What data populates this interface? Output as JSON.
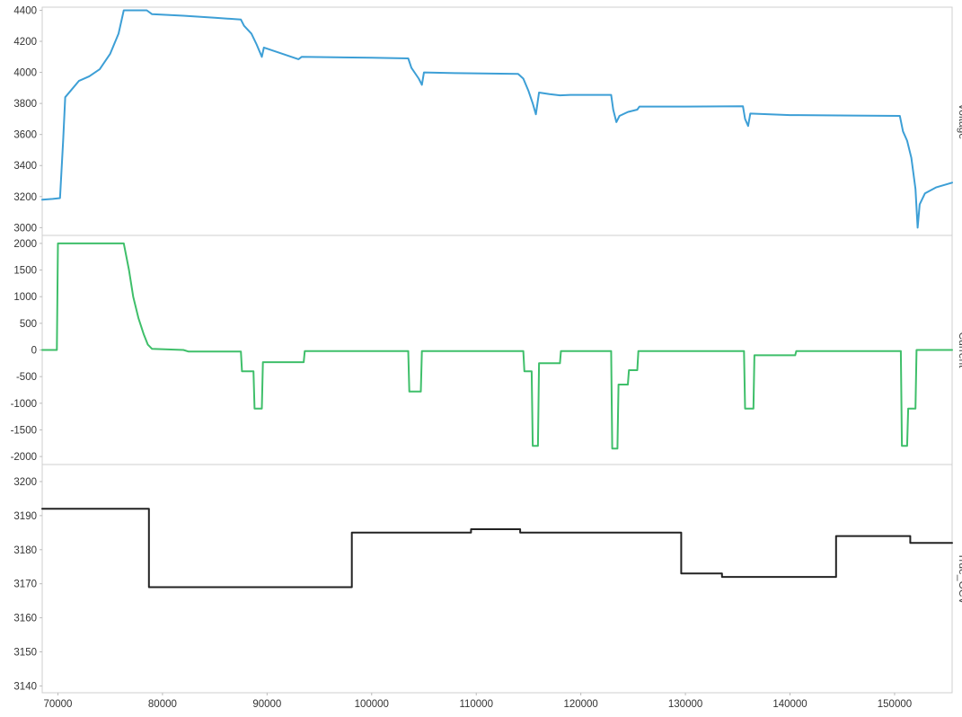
{
  "colors": {
    "voltage": "#3d9fd6",
    "current": "#3fbf6a",
    "true_ocv": "#222222",
    "grid": "#dddddd",
    "frame": "#cfcfcf"
  },
  "chart_data": [
    {
      "type": "line",
      "name": "Voltage",
      "ylabel": "Voltage",
      "xlim": [
        68500,
        155500
      ],
      "ylim": [
        2950,
        4420
      ],
      "yticks": [
        3000,
        3200,
        3400,
        3600,
        3800,
        4000,
        4200,
        4400
      ],
      "grid": false,
      "series": [
        {
          "color_key": "voltage",
          "points": [
            [
              68500,
              3180
            ],
            [
              69500,
              3185
            ],
            [
              70200,
              3190
            ],
            [
              70500,
              3560
            ],
            [
              70700,
              3840
            ],
            [
              71200,
              3880
            ],
            [
              72000,
              3945
            ],
            [
              73000,
              3975
            ],
            [
              74000,
              4020
            ],
            [
              75000,
              4120
            ],
            [
              75800,
              4250
            ],
            [
              76300,
              4400
            ],
            [
              78500,
              4400
            ],
            [
              79000,
              4375
            ],
            [
              82000,
              4365
            ],
            [
              85000,
              4352
            ],
            [
              87500,
              4340
            ],
            [
              87800,
              4300
            ],
            [
              88500,
              4250
            ],
            [
              89000,
              4180
            ],
            [
              89500,
              4100
            ],
            [
              89700,
              4160
            ],
            [
              91000,
              4130
            ],
            [
              93000,
              4085
            ],
            [
              93300,
              4100
            ],
            [
              100000,
              4095
            ],
            [
              103500,
              4090
            ],
            [
              103800,
              4030
            ],
            [
              104500,
              3960
            ],
            [
              104800,
              3920
            ],
            [
              105000,
              4000
            ],
            [
              108000,
              3995
            ],
            [
              114000,
              3990
            ],
            [
              114500,
              3960
            ],
            [
              115000,
              3880
            ],
            [
              115400,
              3800
            ],
            [
              115700,
              3730
            ],
            [
              116000,
              3870
            ],
            [
              117000,
              3860
            ],
            [
              118000,
              3852
            ],
            [
              119000,
              3855
            ],
            [
              122900,
              3855
            ],
            [
              123100,
              3760
            ],
            [
              123400,
              3680
            ],
            [
              123700,
              3720
            ],
            [
              124500,
              3745
            ],
            [
              125400,
              3760
            ],
            [
              125600,
              3780
            ],
            [
              130000,
              3780
            ],
            [
              135500,
              3782
            ],
            [
              135700,
              3700
            ],
            [
              136000,
              3655
            ],
            [
              136200,
              3735
            ],
            [
              140000,
              3725
            ],
            [
              146000,
              3722
            ],
            [
              150500,
              3720
            ],
            [
              150800,
              3620
            ],
            [
              151200,
              3560
            ],
            [
              151600,
              3450
            ],
            [
              152000,
              3250
            ],
            [
              152200,
              3000
            ],
            [
              152400,
              3150
            ],
            [
              152900,
              3220
            ],
            [
              154000,
              3260
            ],
            [
              155500,
              3290
            ]
          ]
        }
      ]
    },
    {
      "type": "line",
      "name": "Current",
      "ylabel": "Current",
      "xlim": [
        68500,
        155500
      ],
      "ylim": [
        -2150,
        2150
      ],
      "yticks": [
        -2000,
        -1500,
        -1000,
        -500,
        0,
        500,
        1000,
        1500,
        2000
      ],
      "grid": false,
      "series": [
        {
          "color_key": "current",
          "points": [
            [
              68500,
              0
            ],
            [
              69900,
              0
            ],
            [
              70000,
              2000
            ],
            [
              76300,
              2000
            ],
            [
              76800,
              1500
            ],
            [
              77200,
              1000
            ],
            [
              77700,
              600
            ],
            [
              78200,
              300
            ],
            [
              78600,
              100
            ],
            [
              79000,
              20
            ],
            [
              82000,
              0
            ],
            [
              82500,
              -30
            ],
            [
              87500,
              -30
            ],
            [
              87600,
              -400
            ],
            [
              88700,
              -400
            ],
            [
              88800,
              -1100
            ],
            [
              89500,
              -1100
            ],
            [
              89600,
              -230
            ],
            [
              93500,
              -230
            ],
            [
              93600,
              -20
            ],
            [
              103500,
              -20
            ],
            [
              103600,
              -780
            ],
            [
              104700,
              -780
            ],
            [
              104800,
              -20
            ],
            [
              114500,
              -20
            ],
            [
              114600,
              -400
            ],
            [
              115300,
              -400
            ],
            [
              115400,
              -1800
            ],
            [
              115900,
              -1800
            ],
            [
              116000,
              -250
            ],
            [
              118000,
              -250
            ],
            [
              118100,
              -20
            ],
            [
              122900,
              -20
            ],
            [
              123000,
              -1850
            ],
            [
              123500,
              -1850
            ],
            [
              123600,
              -650
            ],
            [
              124500,
              -650
            ],
            [
              124600,
              -380
            ],
            [
              125400,
              -380
            ],
            [
              125500,
              -20
            ],
            [
              135600,
              -20
            ],
            [
              135700,
              -1100
            ],
            [
              136500,
              -1100
            ],
            [
              136600,
              -100
            ],
            [
              140500,
              -100
            ],
            [
              140600,
              -20
            ],
            [
              150600,
              -20
            ],
            [
              150700,
              -1800
            ],
            [
              151200,
              -1800
            ],
            [
              151300,
              -1100
            ],
            [
              152000,
              -1100
            ],
            [
              152100,
              0
            ],
            [
              155500,
              0
            ]
          ]
        }
      ]
    },
    {
      "type": "line",
      "name": "True OCV",
      "ylabel": "True_OCV",
      "xlim": [
        68500,
        155500
      ],
      "ylim": [
        3138,
        3205
      ],
      "yticks": [
        3140,
        3150,
        3160,
        3170,
        3180,
        3190,
        3200
      ],
      "xticks": [
        70000,
        80000,
        90000,
        100000,
        110000,
        120000,
        130000,
        140000,
        150000
      ],
      "grid": false,
      "series": [
        {
          "color_key": "true_ocv",
          "step": true,
          "points": [
            [
              68500,
              3192
            ],
            [
              78700,
              3192
            ],
            [
              78700,
              3169
            ],
            [
              98100,
              3169
            ],
            [
              98100,
              3185
            ],
            [
              109500,
              3185
            ],
            [
              109500,
              3186
            ],
            [
              114200,
              3186
            ],
            [
              114200,
              3185
            ],
            [
              129600,
              3185
            ],
            [
              129600,
              3173
            ],
            [
              133500,
              3173
            ],
            [
              133500,
              3172
            ],
            [
              144400,
              3172
            ],
            [
              144400,
              3184
            ],
            [
              151500,
              3184
            ],
            [
              151500,
              3182
            ],
            [
              155500,
              3182
            ]
          ]
        }
      ]
    }
  ]
}
